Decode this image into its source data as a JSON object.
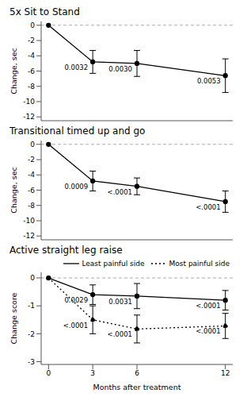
{
  "chart_data": [
    {
      "type": "line",
      "title": "5x Sit to Stand",
      "y_label": "Change, sec",
      "x": [
        0,
        3,
        6,
        12
      ],
      "xlim": [
        -0.5,
        12.5
      ],
      "xticks": [
        0,
        3,
        6,
        12
      ],
      "ylim": [
        -12.5,
        0.5
      ],
      "yticks": [
        -12,
        -10,
        -8,
        -6,
        -4,
        -2,
        0
      ],
      "baseline": 0,
      "tick_labels": "y",
      "series": [
        {
          "color": "#000000",
          "line_style": "solid",
          "marker": "circle",
          "values": [
            0,
            -4.8,
            -5.0,
            -6.6
          ],
          "errors": [
            null,
            1.5,
            1.7,
            2.2
          ],
          "p_values": [
            null,
            "0.0032",
            "0.0030",
            "0.0053"
          ]
        }
      ]
    },
    {
      "type": "line",
      "title": "Transitional timed up and go",
      "y_label": "Change, sec",
      "x": [
        0,
        3,
        6,
        12
      ],
      "xlim": [
        -0.5,
        12.5
      ],
      "xticks": [
        0,
        3,
        6,
        12
      ],
      "ylim": [
        -12.5,
        0.5
      ],
      "yticks": [
        -12,
        -10,
        -8,
        -6,
        -4,
        -2,
        0
      ],
      "baseline": 0,
      "tick_labels": "y",
      "series": [
        {
          "color": "#000000",
          "line_style": "solid",
          "marker": "circle",
          "values": [
            0,
            -4.8,
            -5.5,
            -7.5
          ],
          "errors": [
            null,
            1.3,
            1.1,
            1.4
          ],
          "p_values": [
            null,
            "0.0009",
            "<.0001",
            "<.0001"
          ]
        }
      ]
    },
    {
      "type": "line",
      "title": "Active straight leg raise",
      "y_label": "Change score",
      "x_label": "Months after treatment",
      "x": [
        0,
        3,
        6,
        12
      ],
      "xlim": [
        -0.5,
        12.5
      ],
      "xticks": [
        0,
        3,
        6,
        12
      ],
      "ylim": [
        -3.1,
        0.2
      ],
      "yticks": [
        -3,
        -2,
        -1,
        0
      ],
      "baseline": 0,
      "legend": "top right",
      "series": [
        {
          "name": "Least painful side",
          "color": "#000000",
          "line_style": "solid",
          "marker": "circle",
          "values": [
            0,
            -0.6,
            -0.65,
            -0.8
          ],
          "errors": [
            null,
            0.35,
            0.45,
            0.35
          ],
          "p_values": [
            null,
            "0.0029",
            "0.0031",
            "<.0001"
          ]
        },
        {
          "name": "Most painful side",
          "color": "#000000",
          "line_style": "dotted",
          "marker": "circle",
          "values": [
            0,
            -1.5,
            -1.83,
            -1.72
          ],
          "errors": [
            null,
            0.5,
            0.5,
            0.45
          ],
          "p_values": [
            null,
            "<.0001",
            "<.0001",
            "<.0001"
          ]
        }
      ]
    }
  ]
}
